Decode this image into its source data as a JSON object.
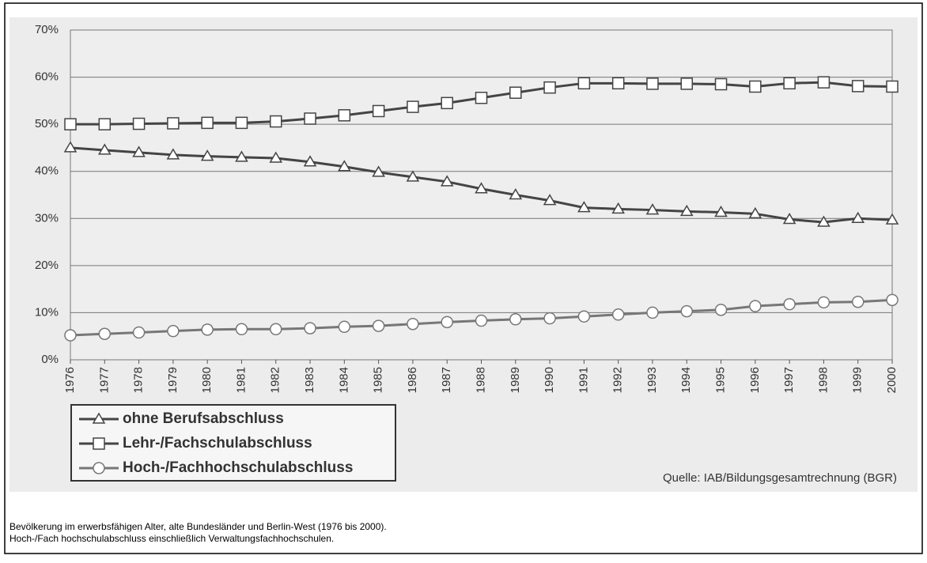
{
  "chart_data": {
    "type": "line",
    "x": [
      1976,
      1977,
      1978,
      1979,
      1980,
      1981,
      1982,
      1983,
      1984,
      1985,
      1986,
      1987,
      1988,
      1989,
      1990,
      1991,
      1992,
      1993,
      1994,
      1995,
      1996,
      1997,
      1998,
      1999,
      2000
    ],
    "xlim": [
      1976,
      2000
    ],
    "xticks": [
      1976,
      1977,
      1978,
      1979,
      1980,
      1981,
      1982,
      1983,
      1984,
      1985,
      1986,
      1987,
      1988,
      1989,
      1990,
      1991,
      1992,
      1993,
      1994,
      1995,
      1996,
      1997,
      1998,
      1999,
      2000
    ],
    "ylim": [
      0,
      70
    ],
    "yticks": [
      {
        "value": 0,
        "label": "0%"
      },
      {
        "value": 10,
        "label": "10%"
      },
      {
        "value": 20,
        "label": "20%"
      },
      {
        "value": 30,
        "label": "30%"
      },
      {
        "value": 40,
        "label": "40%"
      },
      {
        "value": 50,
        "label": "50%"
      },
      {
        "value": 60,
        "label": "60%"
      },
      {
        "value": 70,
        "label": "70%"
      }
    ],
    "grid": true,
    "legend": "bottom-left",
    "series": [
      {
        "name": "ohne Berufsabschluss",
        "color": "#444444",
        "marker": "triangle",
        "values": [
          45,
          44.5,
          44,
          43.5,
          43.2,
          43,
          42.8,
          42,
          41,
          39.8,
          38.8,
          37.8,
          36.3,
          35,
          33.8,
          32.3,
          32,
          31.8,
          31.5,
          31.3,
          31,
          29.8,
          29.2,
          30,
          29.7
        ]
      },
      {
        "name": "Lehr-/Fachschulabschluss",
        "color": "#444444",
        "marker": "square",
        "values": [
          50,
          50,
          50.1,
          50.2,
          50.3,
          50.3,
          50.6,
          51.2,
          51.9,
          52.8,
          53.7,
          54.5,
          55.6,
          56.7,
          57.8,
          58.7,
          58.7,
          58.6,
          58.6,
          58.5,
          58,
          58.7,
          58.9,
          58.1,
          58
        ]
      },
      {
        "name": "Hoch-/Fachhochschulabschluss",
        "color": "#777777",
        "marker": "circle",
        "values": [
          5.2,
          5.5,
          5.8,
          6.1,
          6.4,
          6.5,
          6.5,
          6.7,
          7,
          7.2,
          7.6,
          8,
          8.3,
          8.6,
          8.8,
          9.2,
          9.6,
          10,
          10.3,
          10.6,
          11.4,
          11.8,
          12.2,
          12.3,
          12.7
        ]
      }
    ],
    "source": "Quelle: IAB/Bildungsgesamtrechnung (BGR)",
    "notes": [
      "Bevölkerung im erwerbsfähigen Alter, alte Bundesländer und Berlin-West (1976 bis 2000).",
      "Hoch-/Fach hochschulabschluss einschließlich Verwaltungsfachhochschulen."
    ]
  }
}
